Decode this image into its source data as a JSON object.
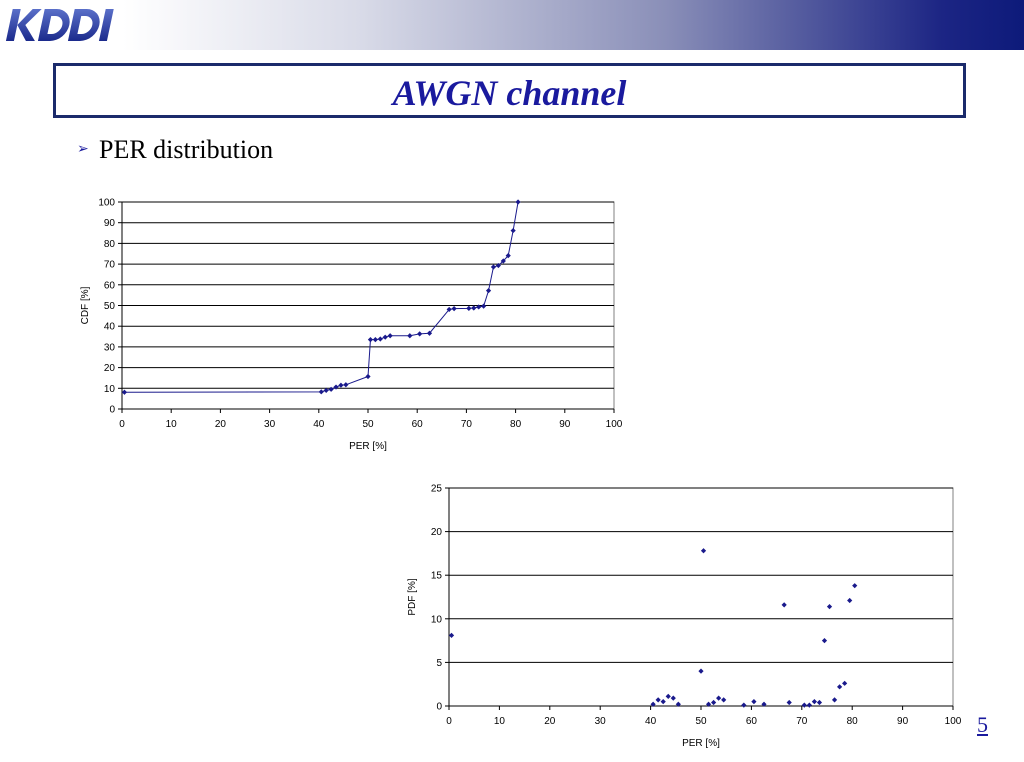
{
  "logo": {
    "icon": "kddi-logo",
    "text": "KDDI"
  },
  "slide": {
    "title": "AWGN channel",
    "bullet": "PER distribution",
    "page_number": "5"
  },
  "colors": {
    "accent": "#1a1a9e",
    "marker": "#1a1a8c",
    "frame": "#1b2a6b"
  },
  "chart_data": [
    {
      "type": "line",
      "xlabel": "PER [%]",
      "ylabel": "CDF [%]",
      "xlim": [
        0,
        100
      ],
      "ylim": [
        0,
        100
      ],
      "xticks": [
        0,
        10,
        20,
        30,
        40,
        50,
        60,
        70,
        80,
        90,
        100
      ],
      "yticks": [
        0,
        10,
        20,
        30,
        40,
        50,
        60,
        70,
        80,
        90,
        100
      ],
      "grid": "horizontal",
      "markers": true,
      "x": [
        0.5,
        40.5,
        41.5,
        42.5,
        43.5,
        44.5,
        45.5,
        50,
        50.5,
        51.5,
        52.5,
        53.5,
        54.5,
        58.5,
        60.5,
        62.5,
        66.5,
        67.5,
        70.5,
        71.5,
        72.5,
        73.5,
        74.5,
        75.5,
        76.5,
        77.5,
        78.5,
        79.5,
        80.5
      ],
      "y": [
        8.1,
        8.3,
        9.0,
        9.5,
        10.6,
        11.5,
        11.7,
        15.7,
        33.5,
        33.5,
        33.8,
        34.7,
        35.4,
        35.4,
        36.3,
        36.6,
        48.1,
        48.5,
        48.6,
        48.8,
        49.3,
        49.7,
        57.2,
        68.6,
        69.3,
        71.5,
        74.1,
        86.2,
        100
      ]
    },
    {
      "type": "scatter",
      "xlabel": "PER [%]",
      "ylabel": "PDF [%]",
      "xlim": [
        0,
        100
      ],
      "ylim": [
        0,
        25
      ],
      "xticks": [
        0,
        10,
        20,
        30,
        40,
        50,
        60,
        70,
        80,
        90,
        100
      ],
      "yticks": [
        0,
        5,
        10,
        15,
        20,
        25
      ],
      "grid": "horizontal",
      "x": [
        0.5,
        40.5,
        41.5,
        42.5,
        43.5,
        44.5,
        45.5,
        50,
        50.5,
        51.5,
        52.5,
        53.5,
        54.5,
        58.5,
        60.5,
        62.5,
        66.5,
        67.5,
        70.5,
        71.5,
        72.5,
        73.5,
        74.5,
        75.5,
        76.5,
        77.5,
        78.5,
        79.5,
        80.5
      ],
      "y": [
        8.1,
        0.2,
        0.7,
        0.5,
        1.1,
        0.9,
        0.2,
        4.0,
        17.8,
        0.2,
        0.4,
        0.9,
        0.7,
        0.1,
        0.5,
        0.2,
        11.6,
        0.4,
        0.1,
        0.1,
        0.5,
        0.4,
        7.5,
        11.4,
        0.7,
        2.2,
        2.6,
        12.1,
        13.8
      ]
    }
  ]
}
